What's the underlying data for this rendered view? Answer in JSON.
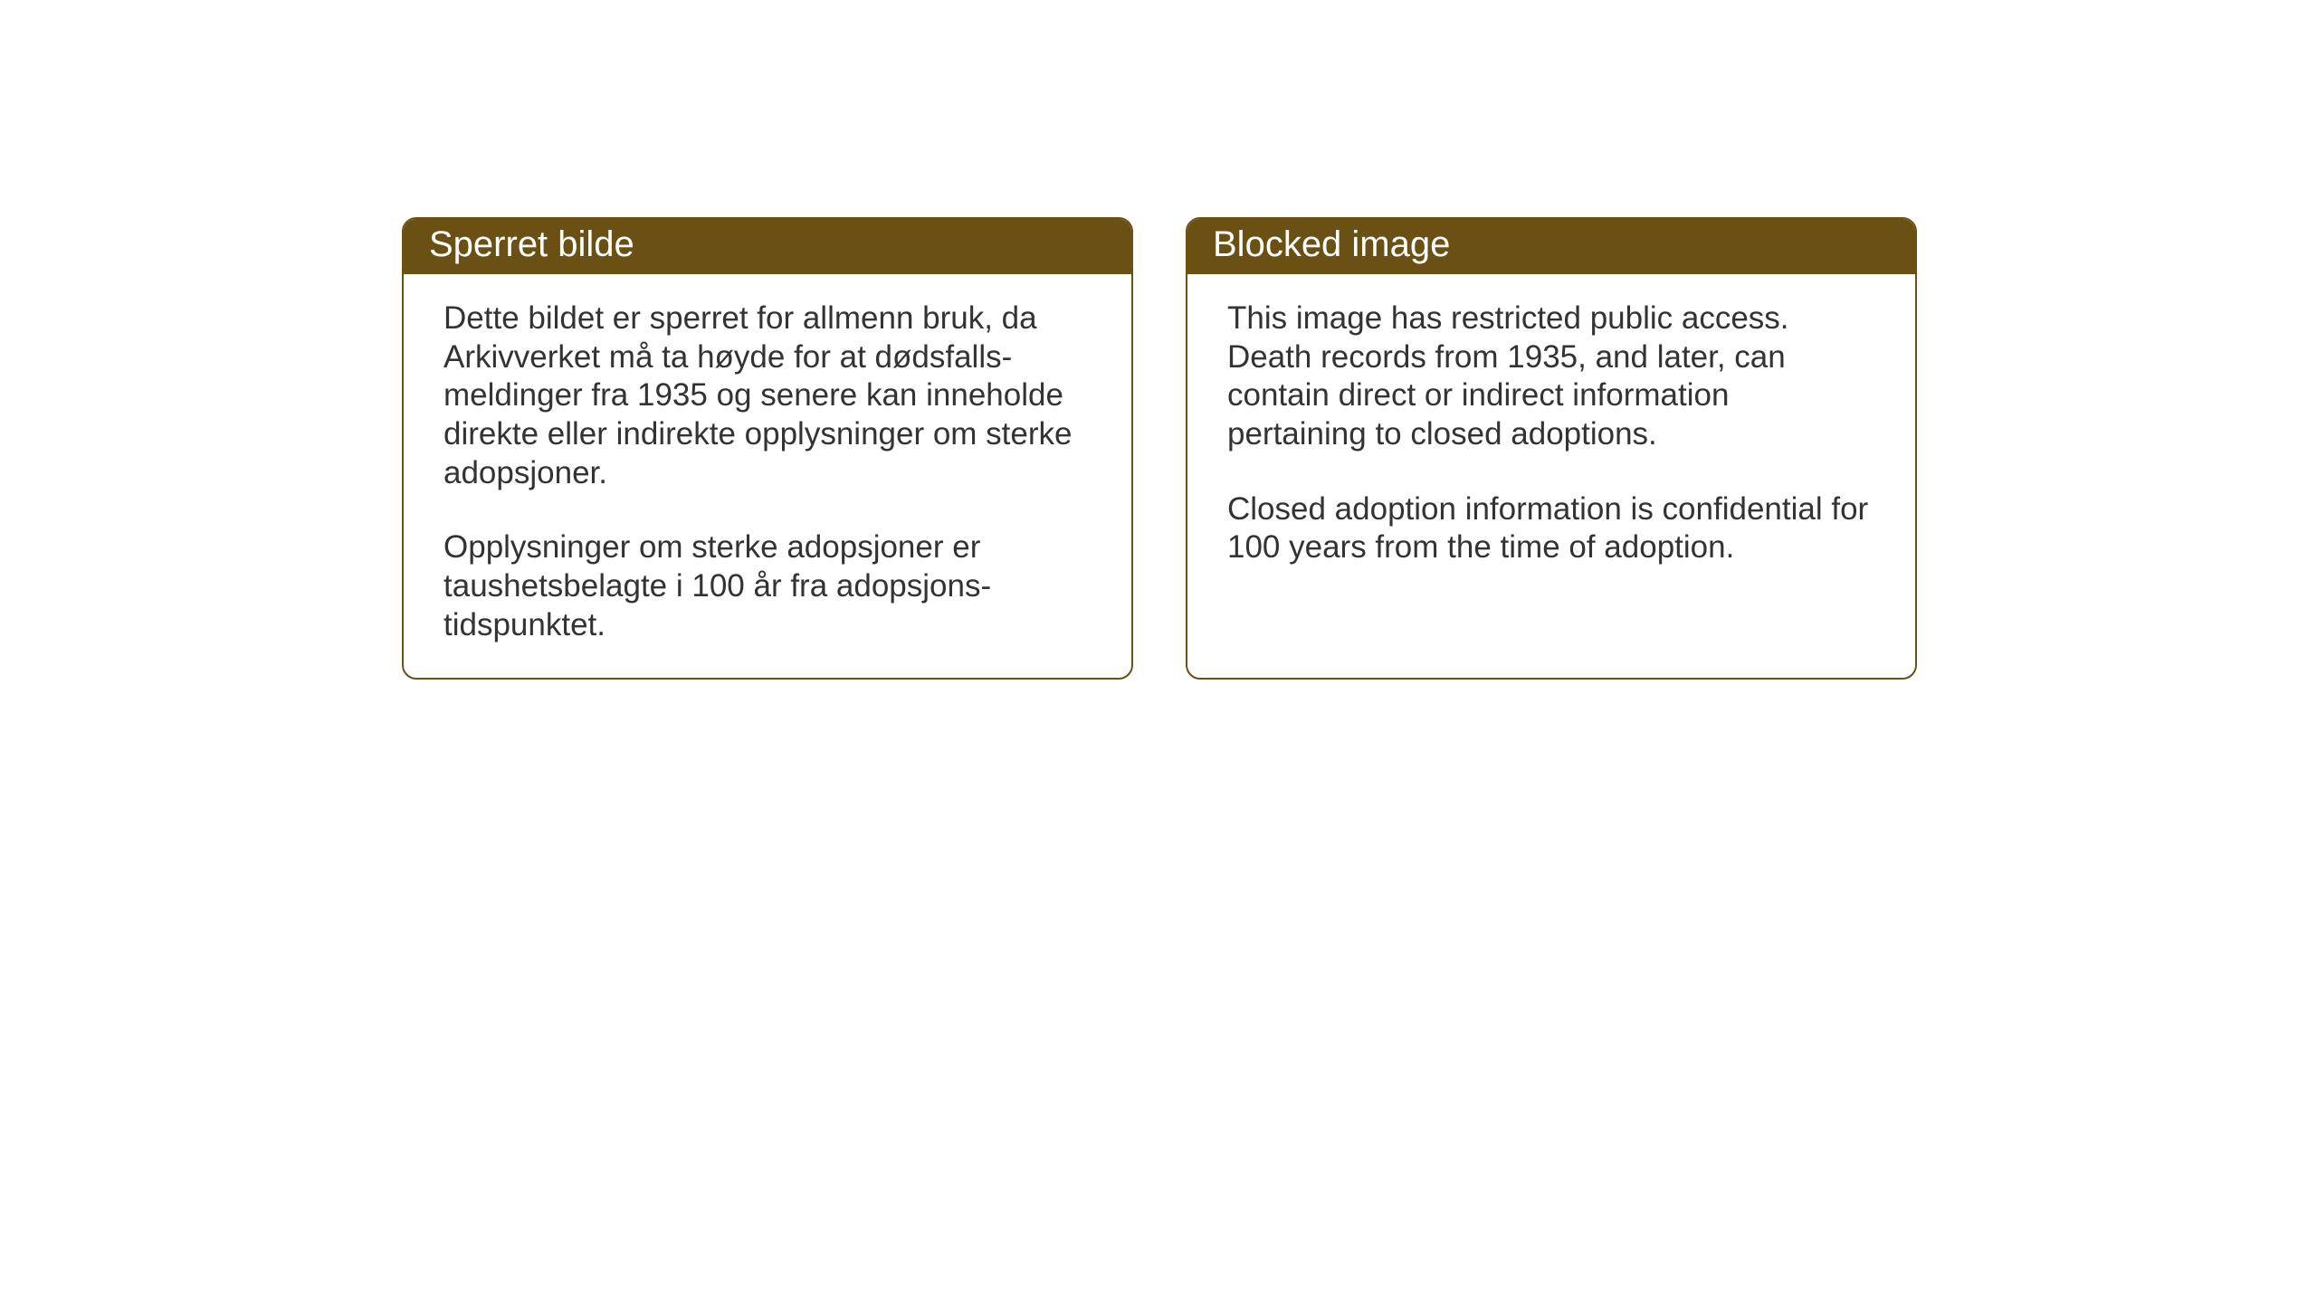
{
  "cards": [
    {
      "title": "Sperret bilde",
      "paragraph1": "Dette bildet er sperret for allmenn bruk, da Arkivverket må ta høyde for at dødsfalls-meldinger fra 1935 og senere kan inneholde direkte eller indirekte opplysninger om sterke adopsjoner.",
      "paragraph2": "Opplysninger om sterke adopsjoner er taushetsbelagte i 100 år fra adopsjons-tidspunktet."
    },
    {
      "title": "Blocked image",
      "paragraph1": "This image has restricted public access. Death records from 1935, and later, can contain direct or indirect information pertaining to closed adoptions.",
      "paragraph2": "Closed adoption information is confidential for 100 years from the time of adoption."
    }
  ],
  "styling": {
    "header_background_color": "#6b5013",
    "header_text_color": "#ffffff",
    "border_color": "#6b5013",
    "body_text_color": "#333333",
    "card_background_color": "#ffffff",
    "page_background_color": "#ffffff",
    "header_font_size": 40,
    "body_font_size": 35,
    "border_radius": 16,
    "border_width": 2
  }
}
